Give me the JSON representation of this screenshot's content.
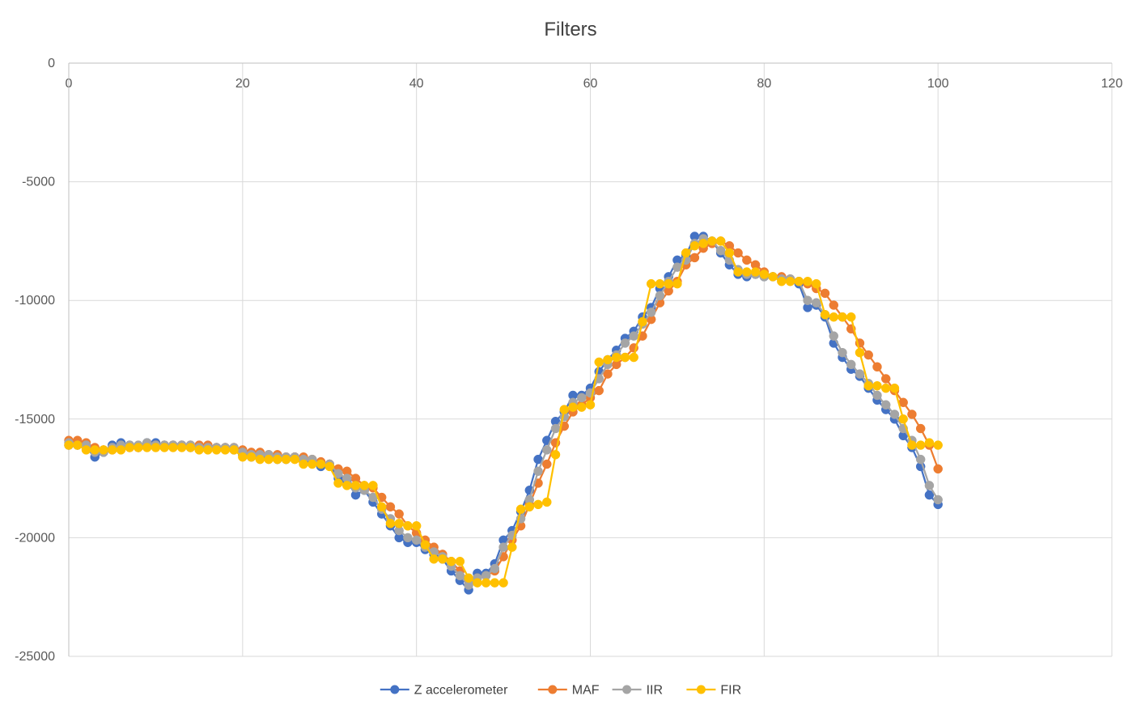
{
  "chart_data": {
    "type": "line",
    "title": "Filters",
    "xlabel": "",
    "ylabel": "",
    "xlim": [
      0,
      120
    ],
    "ylim": [
      -25000,
      0
    ],
    "x_ticks": [
      0,
      20,
      40,
      60,
      80,
      100,
      120
    ],
    "y_ticks": [
      0,
      -5000,
      -10000,
      -15000,
      -20000,
      -25000
    ],
    "grid": true,
    "legend_position": "bottom",
    "x": [
      0,
      1,
      2,
      3,
      4,
      5,
      6,
      7,
      8,
      9,
      10,
      11,
      12,
      13,
      14,
      15,
      16,
      17,
      18,
      19,
      20,
      21,
      22,
      23,
      24,
      25,
      26,
      27,
      28,
      29,
      30,
      31,
      32,
      33,
      34,
      35,
      36,
      37,
      38,
      39,
      40,
      41,
      42,
      43,
      44,
      45,
      46,
      47,
      48,
      49,
      50,
      51,
      52,
      53,
      54,
      55,
      56,
      57,
      58,
      59,
      60,
      61,
      62,
      63,
      64,
      65,
      66,
      67,
      68,
      69,
      70,
      71,
      72,
      73,
      74,
      75,
      76,
      77,
      78,
      79,
      80,
      81,
      82,
      83,
      84,
      85,
      86,
      87,
      88,
      89,
      90,
      91,
      92,
      93,
      94,
      95,
      96,
      97,
      98,
      99,
      100
    ],
    "series": [
      {
        "name": "Z accelerometer",
        "color": "#4472C4",
        "values": [
          -16100,
          -16100,
          -16200,
          -16600,
          -16400,
          -16100,
          -16000,
          -16100,
          -16200,
          -16000,
          -16000,
          -16100,
          -16100,
          -16100,
          -16200,
          -16200,
          -16200,
          -16200,
          -16200,
          -16300,
          -16500,
          -16600,
          -16500,
          -16600,
          -16700,
          -16700,
          -16600,
          -16700,
          -16800,
          -17000,
          -16900,
          -17500,
          -17600,
          -18200,
          -18000,
          -18500,
          -19000,
          -19500,
          -20000,
          -20200,
          -20200,
          -20500,
          -20700,
          -20900,
          -21400,
          -21800,
          -22200,
          -21500,
          -21500,
          -21100,
          -20100,
          -19700,
          -18900,
          -18000,
          -16700,
          -15900,
          -15100,
          -14700,
          -14000,
          -14000,
          -13700,
          -13000,
          -12500,
          -12100,
          -11600,
          -11300,
          -10700,
          -10300,
          -9500,
          -9000,
          -8300,
          -8100,
          -7300,
          -7300,
          -7500,
          -8000,
          -8500,
          -8900,
          -9000,
          -8900,
          -9000,
          -9000,
          -9100,
          -9100,
          -9300,
          -10300,
          -10200,
          -10700,
          -11800,
          -12400,
          -12900,
          -13200,
          -13700,
          -14200,
          -14600,
          -15000,
          -15700,
          -16200,
          -17000,
          -18200,
          -18600
        ]
      },
      {
        "name": "MAF",
        "color": "#ED7D31",
        "values": [
          -15900,
          -15900,
          -16000,
          -16200,
          -16300,
          -16300,
          -16200,
          -16200,
          -16200,
          -16100,
          -16100,
          -16100,
          -16100,
          -16100,
          -16100,
          -16100,
          -16100,
          -16200,
          -16200,
          -16200,
          -16300,
          -16400,
          -16400,
          -16500,
          -16500,
          -16600,
          -16600,
          -16600,
          -16700,
          -16800,
          -16900,
          -17100,
          -17200,
          -17500,
          -17800,
          -17900,
          -18300,
          -18700,
          -19000,
          -19500,
          -19800,
          -20100,
          -20400,
          -20700,
          -21000,
          -21400,
          -21800,
          -21700,
          -21600,
          -21400,
          -20800,
          -20100,
          -19500,
          -18600,
          -17700,
          -16900,
          -16000,
          -15300,
          -14700,
          -14400,
          -14100,
          -13800,
          -13100,
          -12700,
          -12400,
          -12000,
          -11500,
          -10800,
          -10100,
          -9600,
          -9200,
          -8500,
          -8200,
          -7800,
          -7600,
          -7500,
          -7700,
          -8000,
          -8300,
          -8500,
          -8800,
          -9000,
          -9000,
          -9100,
          -9200,
          -9300,
          -9500,
          -9700,
          -10200,
          -10700,
          -11200,
          -11800,
          -12300,
          -12800,
          -13300,
          -13800,
          -14300,
          -14800,
          -15400,
          -16100,
          -17100
        ]
      },
      {
        "name": "IIR",
        "color": "#A5A5A5",
        "values": [
          -16000,
          -16100,
          -16100,
          -16400,
          -16400,
          -16200,
          -16100,
          -16100,
          -16100,
          -16000,
          -16100,
          -16100,
          -16100,
          -16100,
          -16100,
          -16200,
          -16200,
          -16200,
          -16200,
          -16200,
          -16400,
          -16500,
          -16500,
          -16500,
          -16600,
          -16600,
          -16600,
          -16700,
          -16700,
          -16900,
          -16900,
          -17300,
          -17500,
          -17900,
          -18000,
          -18300,
          -18800,
          -19200,
          -19700,
          -20000,
          -20100,
          -20400,
          -20600,
          -20800,
          -21200,
          -21600,
          -22000,
          -21700,
          -21600,
          -21300,
          -20400,
          -19900,
          -19200,
          -18400,
          -17200,
          -16300,
          -15400,
          -14900,
          -14300,
          -14100,
          -13900,
          -13300,
          -12700,
          -12300,
          -11800,
          -11500,
          -11000,
          -10500,
          -9800,
          -9200,
          -8600,
          -8300,
          -7600,
          -7400,
          -7500,
          -7900,
          -8300,
          -8700,
          -8900,
          -8900,
          -9000,
          -9000,
          -9100,
          -9100,
          -9200,
          -10000,
          -10100,
          -10600,
          -11500,
          -12200,
          -12700,
          -13100,
          -13500,
          -14000,
          -14400,
          -14800,
          -15400,
          -15900,
          -16700,
          -17800,
          -18400
        ]
      },
      {
        "name": "FIR",
        "color": "#FFC000",
        "values": [
          -16100,
          -16100,
          -16300,
          -16300,
          -16300,
          -16300,
          -16300,
          -16200,
          -16200,
          -16200,
          -16200,
          -16200,
          -16200,
          -16200,
          -16200,
          -16300,
          -16300,
          -16300,
          -16300,
          -16300,
          -16600,
          -16600,
          -16700,
          -16700,
          -16700,
          -16700,
          -16700,
          -16900,
          -16900,
          -16900,
          -17000,
          -17700,
          -17800,
          -17800,
          -17800,
          -17800,
          -18700,
          -19400,
          -19400,
          -19500,
          -19500,
          -20300,
          -20900,
          -20900,
          -21000,
          -21000,
          -21700,
          -21900,
          -21900,
          -21900,
          -21900,
          -20400,
          -18800,
          -18700,
          -18600,
          -18500,
          -16500,
          -14600,
          -14500,
          -14500,
          -14400,
          -12600,
          -12500,
          -12400,
          -12400,
          -12400,
          -10900,
          -9300,
          -9300,
          -9300,
          -9300,
          -8000,
          -7700,
          -7600,
          -7500,
          -7500,
          -8000,
          -8800,
          -8800,
          -8800,
          -8900,
          -9000,
          -9200,
          -9200,
          -9200,
          -9200,
          -9300,
          -10600,
          -10700,
          -10700,
          -10700,
          -12200,
          -13600,
          -13600,
          -13700,
          -13700,
          -15000,
          -16100,
          -16100,
          -16000,
          -16100
        ]
      }
    ]
  }
}
